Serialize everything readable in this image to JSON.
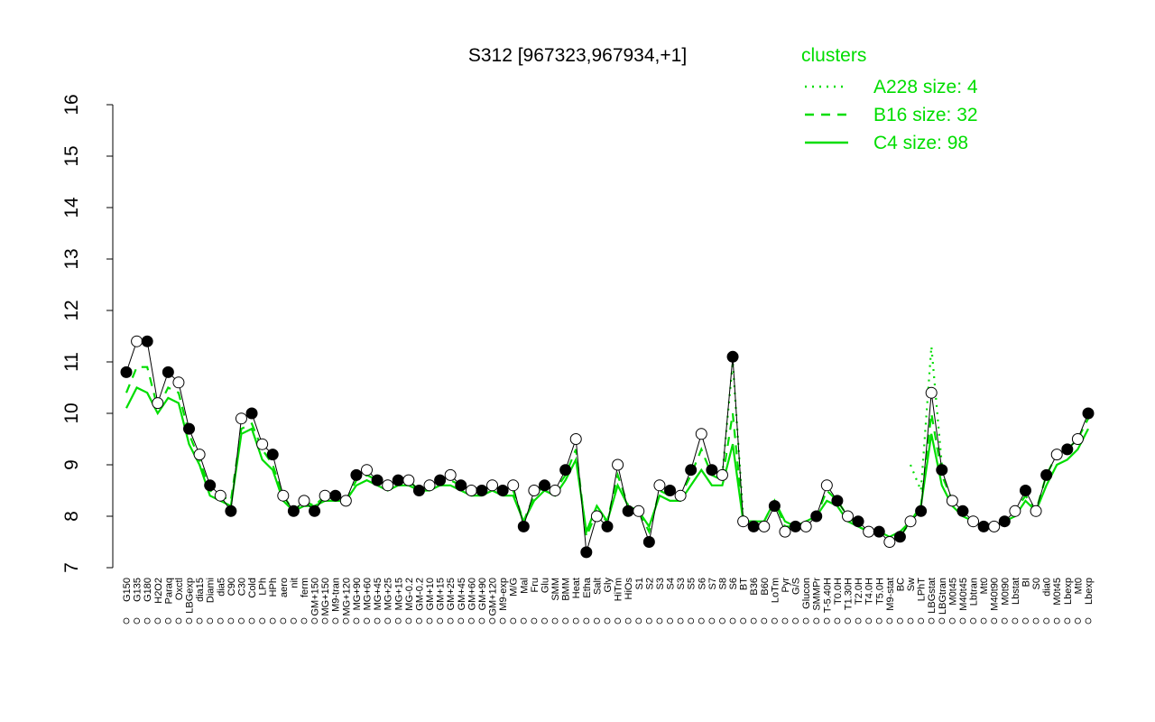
{
  "chart_data": {
    "type": "line",
    "title": "S312 [967323,967934,+1]",
    "legend_title": "clusters",
    "legend_color": "#00dd00",
    "categories": [
      "G150",
      "G135",
      "G180",
      "H2O2",
      "Paraq",
      "Oxctl",
      "LBGexp",
      "dia15",
      "Diami",
      "dia5",
      "C90",
      "C30",
      "Cold",
      "LPh",
      "HPh",
      "aero",
      "nit",
      "ferm",
      "GM+150",
      "MG+150",
      "M9-tran",
      "MG+120",
      "MG+90",
      "MG+60",
      "MG+45",
      "MG+25",
      "MG+15",
      "MG-0.2",
      "GM-0.2",
      "GM+10",
      "GM+15",
      "GM+25",
      "GM+45",
      "GM+60",
      "GM+90",
      "GM+120",
      "M9-exp",
      "M/G",
      "Mal",
      "Fru",
      "Glu",
      "SMM",
      "BMM",
      "Heat",
      "Etha",
      "Salt",
      "Gly",
      "HiTm",
      "HiOs",
      "S1",
      "S2",
      "S3",
      "S4",
      "S3",
      "S5",
      "S6",
      "S7",
      "S8",
      "S6",
      "BT",
      "B36",
      "B60",
      "LoTm",
      "Pyr",
      "G/S",
      "Glucon",
      "SMMPr",
      "T-5.40H",
      "T0.0H",
      "T1.30H",
      "T2.0H",
      "T4.0H",
      "T5.0H",
      "M9-stat",
      "BC",
      "Sw",
      "LPhT",
      "LBGstat",
      "LBGtran",
      "M0t45",
      "M40t45",
      "Lbtran",
      "Mt0",
      "M40t90",
      "M0t90",
      "Lbstat",
      "BI",
      "S0",
      "dia0",
      "M0t45",
      "Lbexp",
      "Mt0",
      "Lbexp"
    ],
    "values": [
      10.8,
      11.4,
      11.4,
      10.2,
      10.8,
      10.6,
      9.7,
      9.2,
      8.6,
      8.4,
      8.1,
      9.9,
      10.0,
      9.4,
      9.2,
      8.4,
      8.1,
      8.3,
      8.1,
      8.4,
      8.4,
      8.3,
      8.8,
      8.9,
      8.7,
      8.6,
      8.7,
      8.7,
      8.5,
      8.6,
      8.7,
      8.8,
      8.6,
      8.5,
      8.5,
      8.6,
      8.5,
      8.6,
      7.8,
      8.5,
      8.6,
      8.5,
      8.9,
      9.5,
      7.3,
      8.0,
      7.8,
      9.0,
      8.1,
      8.1,
      7.5,
      8.6,
      8.5,
      8.4,
      8.9,
      9.6,
      8.9,
      8.8,
      11.1,
      7.9,
      7.8,
      7.8,
      8.2,
      7.7,
      7.8,
      7.8,
      8.0,
      8.6,
      8.3,
      8.0,
      7.9,
      7.7,
      7.7,
      7.5,
      7.6,
      7.9,
      8.1,
      10.4,
      8.9,
      8.3,
      8.1,
      7.9,
      7.8,
      7.8,
      7.9,
      8.1,
      8.5,
      8.1,
      8.8,
      9.2,
      9.3,
      9.5,
      10.0
    ],
    "color": "#000000",
    "series": [
      {
        "name": "A228 size: 4",
        "color": "#00dd00",
        "linestyle": "dotted",
        "values": [
          null,
          null,
          null,
          null,
          null,
          null,
          null,
          null,
          null,
          null,
          null,
          null,
          null,
          null,
          null,
          null,
          null,
          null,
          null,
          null,
          null,
          null,
          null,
          null,
          null,
          null,
          null,
          null,
          null,
          null,
          null,
          null,
          null,
          null,
          null,
          null,
          null,
          null,
          null,
          null,
          null,
          null,
          null,
          null,
          null,
          null,
          null,
          null,
          null,
          null,
          null,
          null,
          null,
          null,
          null,
          null,
          null,
          8.8,
          11.0,
          8.0,
          null,
          null,
          null,
          null,
          null,
          null,
          null,
          null,
          null,
          null,
          null,
          null,
          null,
          null,
          null,
          9.0,
          8.5,
          11.3,
          9.0,
          null,
          null,
          null,
          null,
          null,
          null,
          null,
          null,
          null,
          null,
          null,
          null,
          null,
          null
        ]
      },
      {
        "name": "B16 size: 32",
        "color": "#00dd00",
        "linestyle": "dashed",
        "values": [
          10.4,
          10.9,
          10.9,
          10.1,
          10.5,
          10.4,
          9.6,
          9.1,
          8.5,
          8.4,
          8.3,
          9.7,
          9.8,
          9.3,
          9.0,
          8.4,
          8.1,
          8.3,
          8.2,
          8.4,
          8.4,
          8.3,
          8.7,
          8.8,
          8.7,
          8.6,
          8.7,
          8.7,
          8.5,
          8.6,
          8.7,
          8.7,
          8.6,
          8.5,
          8.5,
          8.6,
          8.5,
          8.5,
          7.9,
          8.4,
          8.6,
          8.5,
          8.8,
          9.3,
          7.6,
          8.1,
          7.9,
          8.8,
          8.2,
          8.1,
          7.7,
          8.5,
          8.4,
          8.4,
          8.8,
          9.3,
          8.8,
          8.7,
          10.0,
          7.9,
          7.9,
          7.9,
          8.3,
          7.8,
          7.8,
          7.9,
          8.0,
          8.5,
          8.3,
          8.0,
          7.8,
          7.7,
          7.7,
          7.5,
          7.6,
          7.9,
          8.2,
          10.0,
          8.8,
          8.3,
          8.1,
          7.9,
          7.8,
          7.8,
          7.9,
          8.1,
          8.4,
          8.1,
          8.8,
          9.2,
          9.3,
          9.5,
          9.9
        ]
      },
      {
        "name": "C4 size: 98",
        "color": "#00dd00",
        "linestyle": "solid",
        "values": [
          10.1,
          10.5,
          10.4,
          10.0,
          10.3,
          10.2,
          9.4,
          9.0,
          8.4,
          8.3,
          8.2,
          9.6,
          9.7,
          9.1,
          8.9,
          8.3,
          8.1,
          8.2,
          8.2,
          8.3,
          8.3,
          8.3,
          8.6,
          8.7,
          8.6,
          8.5,
          8.6,
          8.6,
          8.5,
          8.5,
          8.6,
          8.6,
          8.5,
          8.4,
          8.4,
          8.5,
          8.4,
          8.4,
          7.9,
          8.3,
          8.5,
          8.4,
          8.7,
          9.1,
          7.7,
          8.2,
          7.9,
          8.6,
          8.2,
          8.1,
          7.8,
          8.4,
          8.3,
          8.3,
          8.6,
          8.9,
          8.6,
          8.6,
          9.4,
          7.9,
          7.9,
          7.9,
          8.3,
          7.9,
          7.8,
          7.9,
          8.0,
          8.3,
          8.2,
          7.9,
          7.8,
          7.7,
          7.7,
          7.6,
          7.7,
          7.9,
          8.2,
          9.6,
          8.6,
          8.2,
          8.0,
          7.9,
          7.8,
          7.8,
          7.9,
          8.0,
          8.3,
          8.1,
          8.6,
          9.0,
          9.1,
          9.3,
          9.7
        ]
      }
    ],
    "ylim": [
      7,
      16
    ],
    "yticks": [
      7,
      8,
      9,
      10,
      11,
      12,
      13,
      14,
      15,
      16
    ],
    "grid": false
  }
}
